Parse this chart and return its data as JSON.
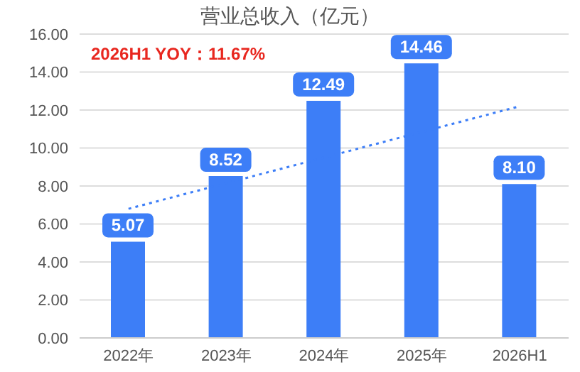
{
  "chart_data": {
    "type": "bar",
    "title": "营业总收入（亿元）",
    "annotations": [
      "2026H1 YOY：11.67%"
    ],
    "categories": [
      "2022年",
      "2023年",
      "2024年",
      "2025年",
      "2026H1"
    ],
    "series": [
      {
        "color": "#3d7ef7",
        "values": [
          5.07,
          8.52,
          12.49,
          14.46,
          8.1
        ],
        "value_labels": [
          "5.07",
          "8.52",
          "12.49",
          "14.46",
          "8.10"
        ]
      },
      {
        "type": "line",
        "color": "#3d7ef7",
        "line_style": "dotted",
        "marker": "none",
        "values": [
          6.8,
          8.15,
          9.5,
          10.85,
          12.2
        ]
      }
    ],
    "ylim": [
      0,
      16
    ],
    "yticks": [
      {
        "value": 0,
        "label": "0.00"
      },
      {
        "value": 2,
        "label": "2.00"
      },
      {
        "value": 4,
        "label": "4.00"
      },
      {
        "value": 6,
        "label": "6.00"
      },
      {
        "value": 8,
        "label": "8.00"
      },
      {
        "value": 10,
        "label": "10.00"
      },
      {
        "value": 12,
        "label": "12.00"
      },
      {
        "value": 14,
        "label": "14.00"
      },
      {
        "value": 16,
        "label": "16.00"
      }
    ],
    "grid": "y",
    "legend": false
  }
}
